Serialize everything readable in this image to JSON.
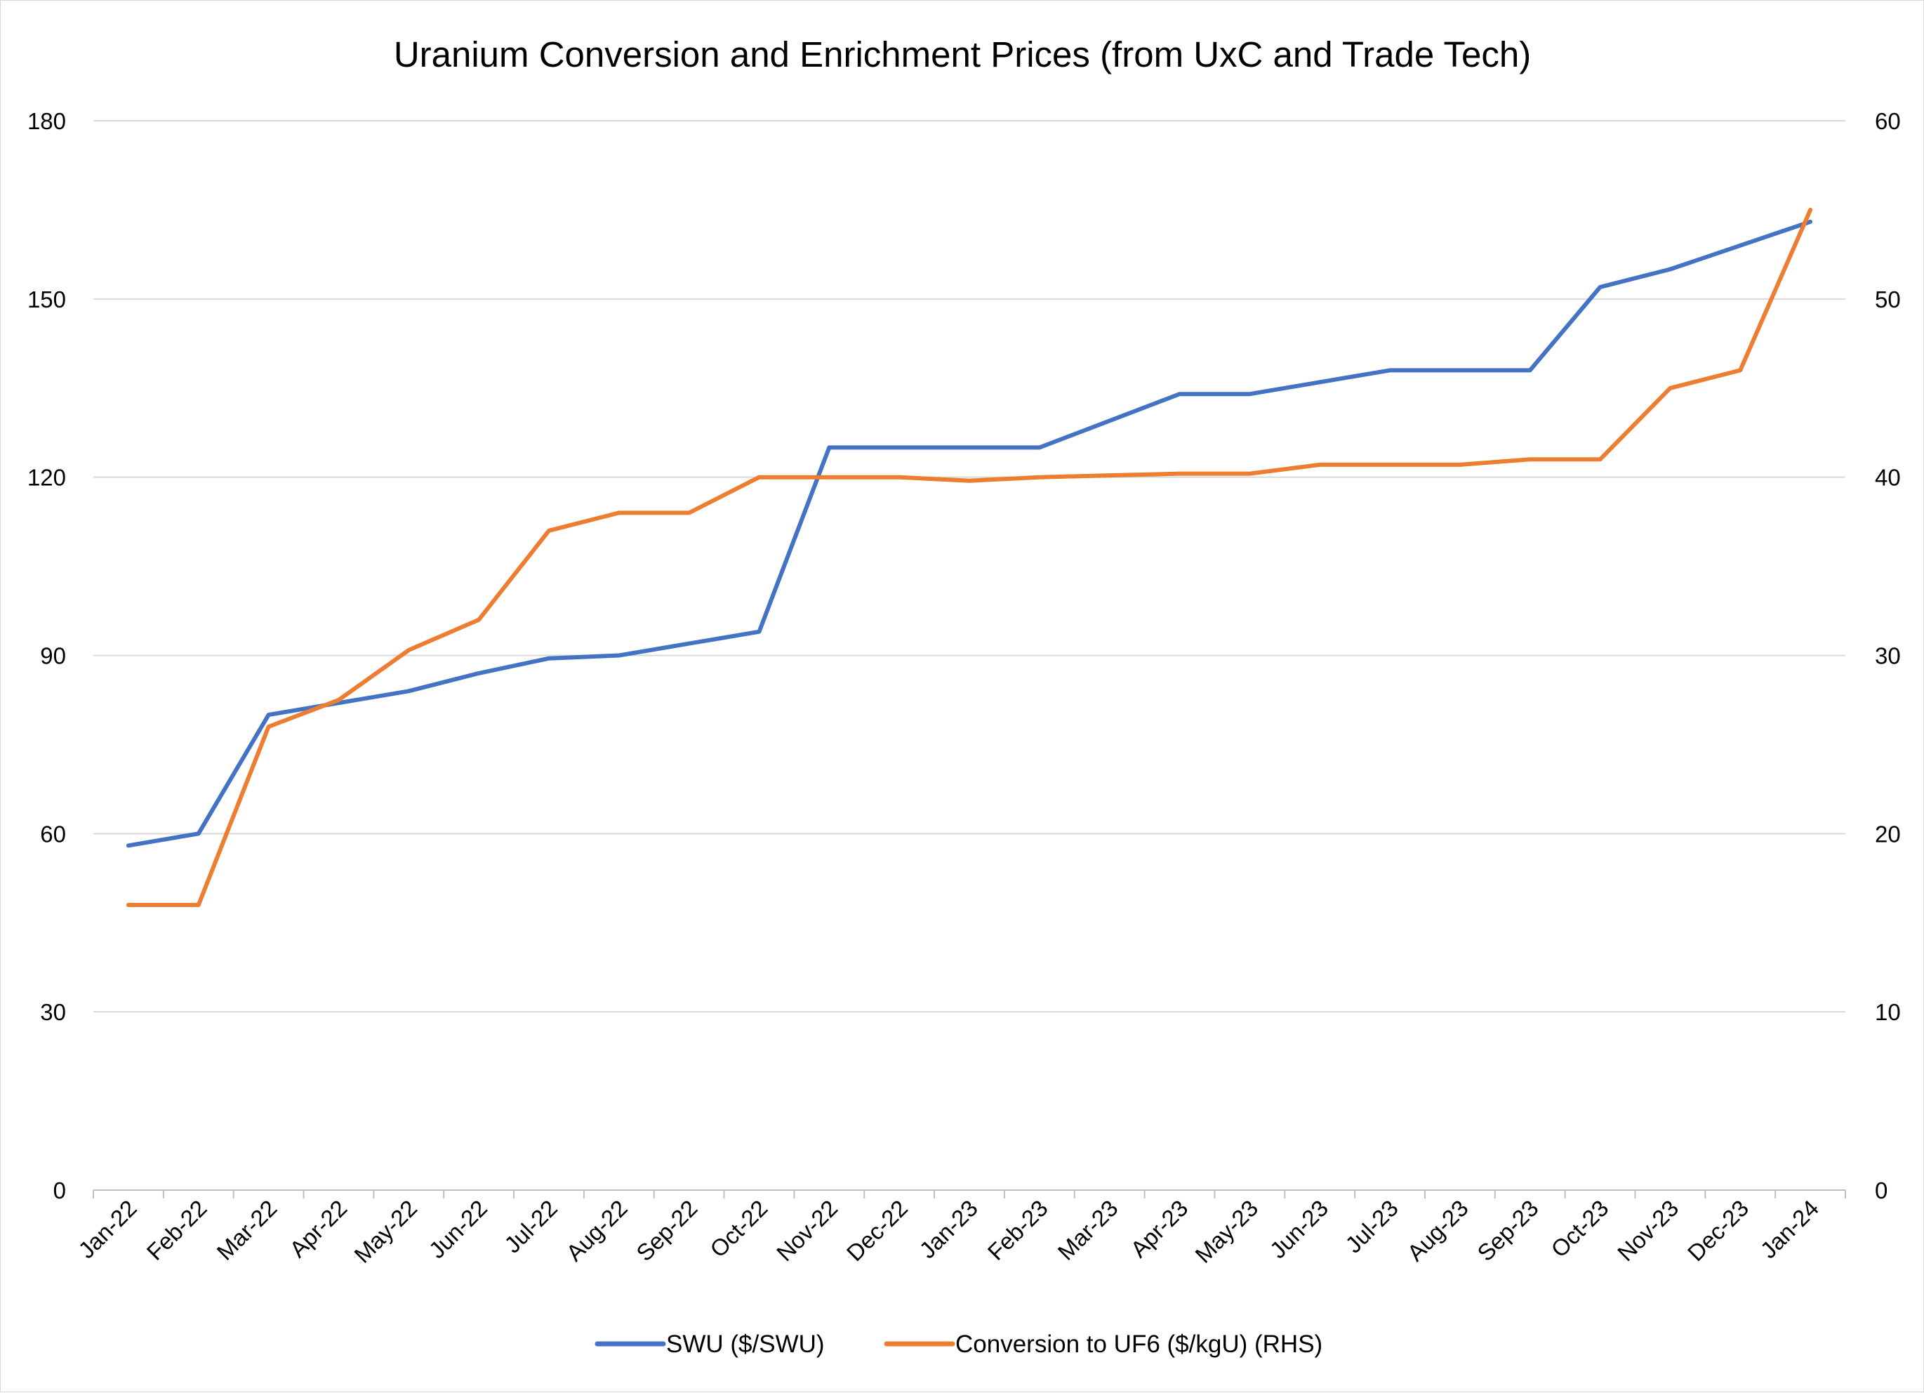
{
  "chart_data": {
    "type": "line",
    "title": "Uranium Conversion and Enrichment Prices (from UxC and Trade Tech)",
    "categories": [
      "Jan-22",
      "Feb-22",
      "Mar-22",
      "Apr-22",
      "May-22",
      "Jun-22",
      "Jul-22",
      "Aug-22",
      "Sep-22",
      "Oct-22",
      "Nov-22",
      "Dec-22",
      "Jan-23",
      "Feb-23",
      "Mar-23",
      "Apr-23",
      "May-23",
      "Jun-23",
      "Jul-23",
      "Aug-23",
      "Sep-23",
      "Oct-23",
      "Nov-23",
      "Dec-23",
      "Jan-24"
    ],
    "y_left": {
      "ylim": [
        0,
        180
      ],
      "ticks": [
        "0",
        "30",
        "60",
        "90",
        "120",
        "150",
        "180"
      ]
    },
    "y_right": {
      "ylim": [
        0,
        60
      ],
      "ticks": [
        "0",
        "10",
        "20",
        "30",
        "40",
        "50",
        "60"
      ]
    },
    "series": [
      {
        "name": "SWU ($/SWU)",
        "axis": "left",
        "color": "#4472c4",
        "values": [
          58,
          60,
          80,
          82,
          84,
          87,
          89.5,
          90,
          92,
          94,
          125,
          125,
          125,
          125,
          129.5,
          134,
          134,
          136,
          138,
          138,
          138,
          152,
          155,
          159,
          163
        ]
      },
      {
        "name": "Conversion to UF6 ($/kgU) (RHS)",
        "axis": "right",
        "color": "#ed7d31",
        "values": [
          16,
          16,
          26,
          27.5,
          30.3,
          32,
          37,
          38,
          38,
          40,
          40,
          40,
          39.8,
          40,
          40.1,
          40.2,
          40.2,
          40.7,
          40.7,
          40.7,
          41,
          41,
          45,
          46,
          55
        ]
      }
    ],
    "grid": true,
    "legend": "bottom"
  }
}
